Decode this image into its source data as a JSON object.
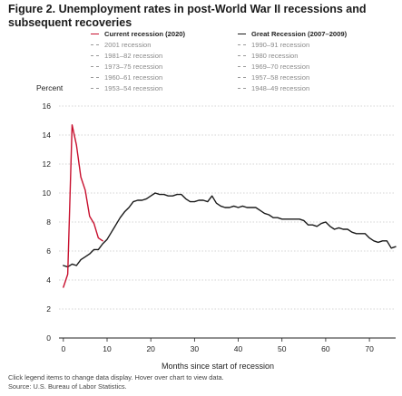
{
  "title": "Figure 2. Unemployment rates in post-World War II recessions and subsequent recoveries",
  "legend": {
    "left": [
      {
        "label": "Current recession (2020)",
        "active": true,
        "color": "#c8102e"
      },
      {
        "label": "2001 recession",
        "active": false,
        "color": "#999999"
      },
      {
        "label": "1981–82 recession",
        "active": false,
        "color": "#999999"
      },
      {
        "label": "1973–75 recession",
        "active": false,
        "color": "#999999"
      },
      {
        "label": "1960–61 recession",
        "active": false,
        "color": "#999999"
      },
      {
        "label": "1953–54 recession",
        "active": false,
        "color": "#999999"
      }
    ],
    "right": [
      {
        "label": "Great Recession (2007–2009)",
        "active": true,
        "color": "#1a1a1a"
      },
      {
        "label": "1990–91 recession",
        "active": false,
        "color": "#999999"
      },
      {
        "label": "1980 recession",
        "active": false,
        "color": "#999999"
      },
      {
        "label": "1969–70 recession",
        "active": false,
        "color": "#999999"
      },
      {
        "label": "1957–58 recession",
        "active": false,
        "color": "#999999"
      },
      {
        "label": "1948–49 recession",
        "active": false,
        "color": "#999999"
      }
    ]
  },
  "footnotes": {
    "instructions": "Click legend items to change data display. Hover over chart to view data.",
    "source": "Source: U.S. Bureau of Labor Statistics."
  },
  "chart_data": {
    "type": "line",
    "title": "Figure 2. Unemployment rates in post-World War II recessions and subsequent recoveries",
    "xlabel": "Months since start of recession",
    "ylabel": "Percent",
    "xlim": [
      -1,
      76
    ],
    "ylim": [
      0,
      16
    ],
    "xticks": [
      0,
      10,
      20,
      30,
      40,
      50,
      60,
      70
    ],
    "yticks": [
      0,
      2,
      4,
      6,
      8,
      10,
      12,
      14,
      16
    ],
    "grid": true,
    "legend_position": "top",
    "series": [
      {
        "name": "Current recession (2020)",
        "color": "#c8102e",
        "x": [
          0,
          1,
          2,
          3,
          4,
          5,
          6,
          7,
          8,
          9
        ],
        "y": [
          3.5,
          4.4,
          14.7,
          13.3,
          11.1,
          10.2,
          8.4,
          7.9,
          6.9,
          6.7
        ]
      },
      {
        "name": "Great Recession (2007–2009)",
        "color": "#1a1a1a",
        "x": [
          0,
          1,
          2,
          3,
          4,
          5,
          6,
          7,
          8,
          9,
          10,
          11,
          12,
          13,
          14,
          15,
          16,
          17,
          18,
          19,
          20,
          21,
          22,
          23,
          24,
          25,
          26,
          27,
          28,
          29,
          30,
          31,
          32,
          33,
          34,
          35,
          36,
          37,
          38,
          39,
          40,
          41,
          42,
          43,
          44,
          45,
          46,
          47,
          48,
          49,
          50,
          51,
          52,
          53,
          54,
          55,
          56,
          57,
          58,
          59,
          60,
          61,
          62,
          63,
          64,
          65,
          66,
          67,
          68,
          69,
          70,
          71,
          72,
          73,
          74,
          75,
          76
        ],
        "y": [
          5.0,
          4.9,
          5.1,
          5.0,
          5.4,
          5.6,
          5.8,
          6.1,
          6.1,
          6.5,
          6.8,
          7.3,
          7.8,
          8.3,
          8.7,
          9.0,
          9.4,
          9.5,
          9.5,
          9.6,
          9.8,
          10.0,
          9.9,
          9.9,
          9.8,
          9.8,
          9.9,
          9.9,
          9.6,
          9.4,
          9.4,
          9.5,
          9.5,
          9.4,
          9.8,
          9.3,
          9.1,
          9.0,
          9.0,
          9.1,
          9.0,
          9.1,
          9.0,
          9.0,
          9.0,
          8.8,
          8.6,
          8.5,
          8.3,
          8.3,
          8.2,
          8.2,
          8.2,
          8.2,
          8.2,
          8.1,
          7.8,
          7.8,
          7.7,
          7.9,
          8.0,
          7.7,
          7.5,
          7.6,
          7.5,
          7.5,
          7.3,
          7.2,
          7.2,
          7.2,
          6.9,
          6.7,
          6.6,
          6.7,
          6.7,
          6.2,
          6.3
        ]
      }
    ]
  }
}
